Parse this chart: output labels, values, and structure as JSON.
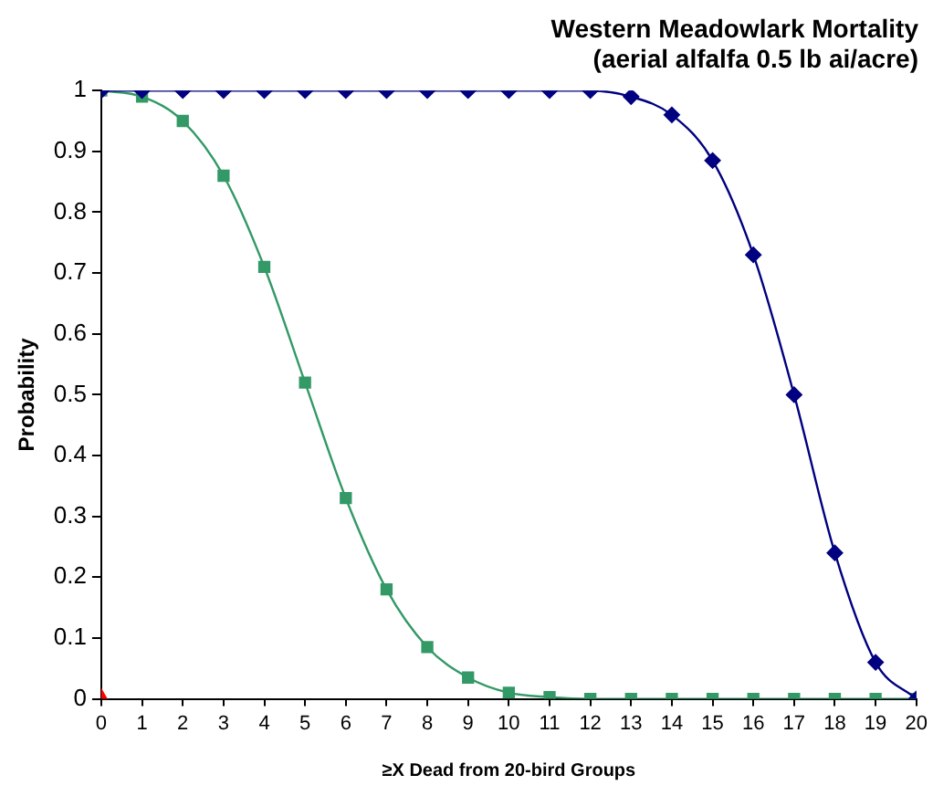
{
  "chart_data": {
    "type": "line",
    "title": "Western Meadowlark Mortality\n(aerial alfalfa 0.5 lb ai/acre)",
    "xlabel": "≥X Dead from 20-bird Groups",
    "ylabel": "Probability",
    "x": [
      0,
      1,
      2,
      3,
      4,
      5,
      6,
      7,
      8,
      9,
      10,
      11,
      12,
      13,
      14,
      15,
      16,
      17,
      18,
      19,
      20
    ],
    "xlim": [
      0,
      20
    ],
    "xticks": [
      0,
      1,
      2,
      3,
      4,
      5,
      6,
      7,
      8,
      9,
      10,
      11,
      12,
      13,
      14,
      15,
      16,
      17,
      18,
      19,
      20
    ],
    "ylim": [
      0,
      1
    ],
    "yticks": [
      0,
      0.1,
      0.2,
      0.3,
      0.4,
      0.5,
      0.6,
      0.7,
      0.8,
      0.9,
      1
    ],
    "grid": false,
    "legend": false,
    "series": [
      {
        "color": "#000080",
        "marker": "diamond",
        "values": [
          1,
          1,
          1,
          1,
          1,
          1,
          1,
          1,
          1,
          1,
          1,
          1,
          1,
          0.99,
          0.96,
          0.885,
          0.73,
          0.5,
          0.24,
          0.06,
          0
        ]
      },
      {
        "color": "#339966",
        "marker": "square",
        "values": [
          1,
          0.99,
          0.95,
          0.86,
          0.71,
          0.52,
          0.33,
          0.18,
          0.085,
          0.035,
          0.01,
          0.003,
          0,
          0,
          0,
          0,
          0,
          0,
          0,
          0,
          0
        ]
      },
      {
        "type": "scatter",
        "color": "#ff0000",
        "marker": "triangle",
        "x": [
          0
        ],
        "values": [
          0
        ]
      }
    ]
  }
}
